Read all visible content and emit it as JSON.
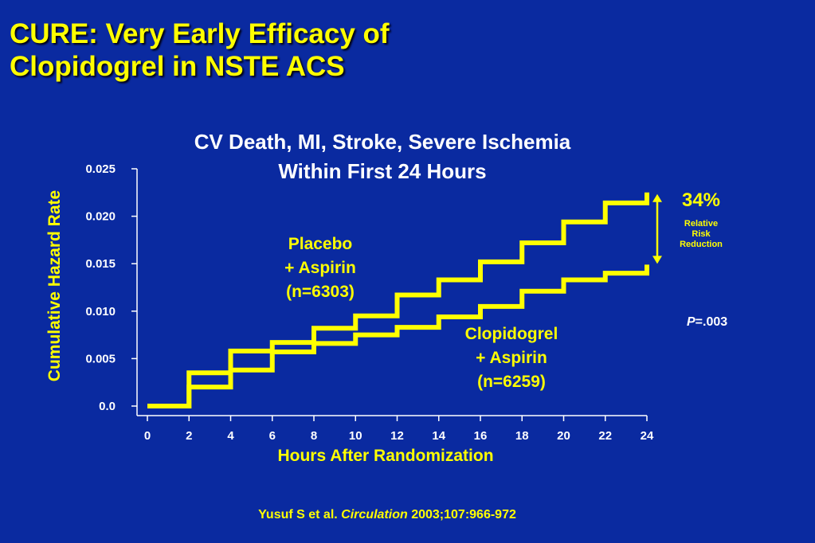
{
  "slide": {
    "title_line1": "CURE: Very Early Efficacy of",
    "title_line2": "Clopidogrel in NSTE ACS",
    "citation_author": "Yusuf S et al.",
    "citation_journal": "Circulation",
    "citation_ref": "2003;107:966-972"
  },
  "annotations": {
    "rrr_value": "34%",
    "rrr_label_line1": "Relative",
    "rrr_label_line2": "Risk",
    "rrr_label_line3": "Reduction",
    "p_symbol": "P",
    "p_value": "=.003"
  },
  "colors": {
    "background": "#0a2aa0",
    "accent": "#ffff00",
    "text": "#ffffff"
  },
  "chart_data": {
    "type": "line",
    "step": true,
    "title_line1": "CV Death, MI, Stroke, Severe Ischemia",
    "title_line2": "Within First 24 Hours",
    "xlabel": "Hours After Randomization",
    "ylabel": "Cumulative Hazard Rate",
    "xlim": [
      0,
      24
    ],
    "ylim": [
      0,
      0.025
    ],
    "x_ticks": [
      "0",
      "2",
      "4",
      "6",
      "8",
      "10",
      "12",
      "14",
      "16",
      "18",
      "20",
      "22",
      "24"
    ],
    "y_ticks": [
      {
        "value": 0,
        "label": "0.0"
      },
      {
        "value": 0.005,
        "label": "0.005"
      },
      {
        "value": 0.01,
        "label": "0.010"
      },
      {
        "value": 0.015,
        "label": "0.015"
      },
      {
        "value": 0.02,
        "label": "0.020"
      },
      {
        "value": 0.025,
        "label": "0.025"
      }
    ],
    "grid": false,
    "series": [
      {
        "name_line1": "Placebo",
        "name_line2": "+ Aspirin",
        "name_line3": "(n=6303)",
        "x": [
          0,
          2,
          4,
          6,
          8,
          10,
          12,
          14,
          16,
          18,
          20,
          22,
          24
        ],
        "values": [
          0,
          0.0035,
          0.0058,
          0.0067,
          0.0082,
          0.0095,
          0.0117,
          0.0133,
          0.0152,
          0.0172,
          0.0194,
          0.0214,
          0.0225
        ]
      },
      {
        "name_line1": "Clopidogrel",
        "name_line2": "+ Aspirin",
        "name_line3": "(n=6259)",
        "x": [
          0,
          2,
          4,
          6,
          8,
          10,
          12,
          14,
          16,
          18,
          20,
          22,
          24
        ],
        "values": [
          0,
          0.002,
          0.0038,
          0.0057,
          0.0066,
          0.0075,
          0.0083,
          0.0094,
          0.0105,
          0.0121,
          0.0133,
          0.014,
          0.0149
        ]
      }
    ]
  }
}
